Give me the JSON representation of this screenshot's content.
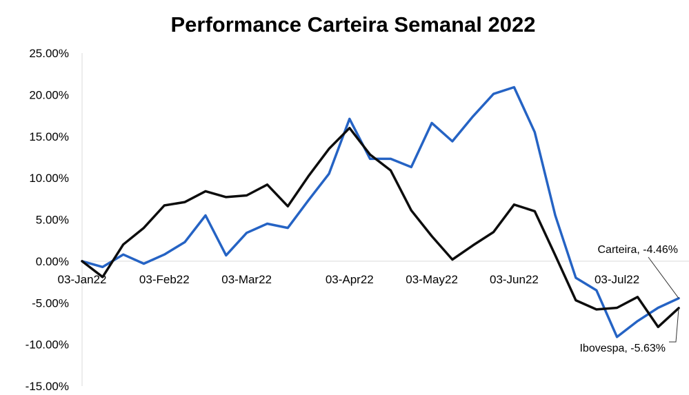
{
  "chart_data": {
    "type": "line",
    "title": "Performance Carteira Semanal 2022",
    "xlabel": "",
    "ylabel": "",
    "ylim": [
      -15,
      25
    ],
    "y_ticks": [
      "25.00%",
      "20.00%",
      "15.00%",
      "10.00%",
      "5.00%",
      "0.00%",
      "-5.00%",
      "-10.00%",
      "-15.00%"
    ],
    "x_ticks": [
      {
        "week": 0,
        "label": "03-Jan22"
      },
      {
        "week": 4,
        "label": "03-Feb22"
      },
      {
        "week": 8,
        "label": "03-Mar22"
      },
      {
        "week": 13,
        "label": "03-Apr22"
      },
      {
        "week": 17,
        "label": "03-May22"
      },
      {
        "week": 21,
        "label": "03-Jun22"
      },
      {
        "week": 26,
        "label": "03-Jul22"
      }
    ],
    "grid": false,
    "series": [
      {
        "name": "Carteira",
        "color": "#2563c4",
        "values": [
          0.0,
          -0.7,
          0.8,
          -0.3,
          0.8,
          2.3,
          5.5,
          0.7,
          3.4,
          4.5,
          4.0,
          7.3,
          10.5,
          17.1,
          12.3,
          12.3,
          11.3,
          16.6,
          14.4,
          17.4,
          20.1,
          20.9,
          15.5,
          5.5,
          -2.0,
          -3.5,
          -9.1,
          -7.2,
          -5.6,
          -4.46
        ],
        "end_label": "Carteira,  -4.46%"
      },
      {
        "name": "Ibovespa",
        "color": "#0d0d0d",
        "values": [
          0.0,
          -1.9,
          2.0,
          4.0,
          6.7,
          7.1,
          8.4,
          7.7,
          7.9,
          9.2,
          6.6,
          10.2,
          13.5,
          16.0,
          12.8,
          10.9,
          6.1,
          3.0,
          0.2,
          1.9,
          3.5,
          6.8,
          6.0,
          0.7,
          -4.7,
          -5.8,
          -5.6,
          -4.3,
          -7.9,
          -5.63
        ],
        "end_label": "Ibovespa,  -5.63%"
      }
    ]
  }
}
